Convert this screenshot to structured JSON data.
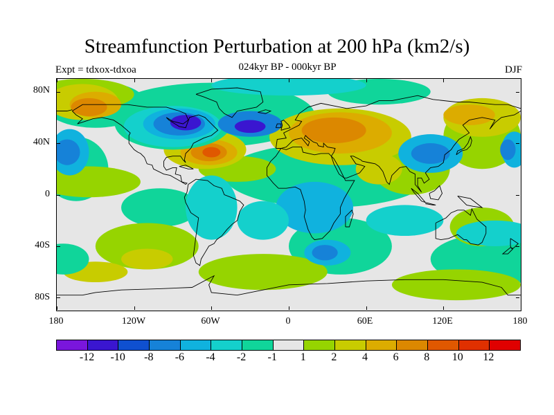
{
  "title": "Streamfunction Perturbation at 200 hPa (km2/s)",
  "subtitle": "024kyr BP - 000kyr BP",
  "left_label": "Expt = tdxox-tdxoa",
  "right_label": "DJF",
  "map": {
    "projection": "cylindrical equidistant",
    "lon_range": [
      -180,
      180
    ],
    "lat_range": [
      -90,
      90
    ],
    "y_ticks": [
      "80N",
      "40N",
      "0",
      "40S",
      "80S"
    ],
    "x_ticks": [
      "180",
      "120W",
      "60W",
      "0",
      "60E",
      "120E",
      "180"
    ]
  },
  "colorbar": {
    "labels": [
      "-12",
      "-10",
      "-8",
      "-6",
      "-4",
      "-2",
      "-1",
      "1",
      "2",
      "4",
      "6",
      "8",
      "10",
      "12"
    ],
    "colors": [
      "#7a16dc",
      "#3a16d0",
      "#0f50d0",
      "#1682d8",
      "#10b2de",
      "#14d0cc",
      "#10d59a",
      "#e6e6e6",
      "#96d400",
      "#c8cc00",
      "#dcac00",
      "#dc8800",
      "#e05800",
      "#e03000",
      "#e00000"
    ]
  },
  "field_colors": {
    "strong_negative": "#3a16d0",
    "negative": "#1682d8",
    "weak_negative": "#10b2de",
    "slight_negative": "#14d0cc",
    "near_zero_neg": "#10d59a",
    "near_zero": "#e6e6e6",
    "slight_positive": "#96d400",
    "positive": "#c8cc00",
    "moderate_positive": "#dcac00",
    "strong_positive": "#dc8800",
    "very_strong_positive": "#e05800"
  }
}
